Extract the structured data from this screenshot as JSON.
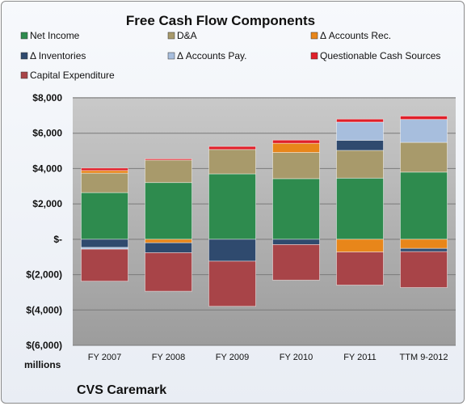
{
  "chart_data": {
    "type": "bar",
    "stacked": true,
    "title": "Free Cash Flow Components",
    "units_label": "millions",
    "footer": "CVS Caremark",
    "categories": [
      "FY 2007",
      "FY 2008",
      "FY 2009",
      "FY 2010",
      "FY 2011",
      "TTM 9-2012"
    ],
    "y_ticks": [
      "$8,000",
      "$6,000",
      "$4,000",
      "$2,000",
      "$-",
      "$(2,000)",
      "$(4,000)",
      "$(6,000)"
    ],
    "ylim": [
      -6000,
      8000
    ],
    "grid": true,
    "legend_position": "top",
    "series": [
      {
        "name": "Net Income",
        "color": "#2e8b4e",
        "values": [
          2640,
          3210,
          3700,
          3430,
          3460,
          3800
        ]
      },
      {
        "name": "D&A",
        "color": "#a89a6b",
        "values": [
          1100,
          1270,
          1380,
          1480,
          1570,
          1680
        ]
      },
      {
        "name": "Δ Accounts Rec.",
        "color": "#e8861a",
        "values": [
          150,
          -200,
          0,
          520,
          -720,
          -520
        ]
      },
      {
        "name": "Δ Inventories",
        "color": "#2f4a6e",
        "values": [
          -460,
          -560,
          -1240,
          -300,
          570,
          -180
        ]
      },
      {
        "name": "Δ Accounts Pay.",
        "color": "#a7bedd",
        "values": [
          -100,
          0,
          0,
          0,
          1030,
          1300
        ]
      },
      {
        "name": "Questionable Cash Sources",
        "color": "#e0202a",
        "values": [
          140,
          70,
          170,
          180,
          170,
          190
        ]
      },
      {
        "name": "Capital Expenditure",
        "color": "#a84448",
        "values": [
          -1810,
          -2180,
          -2550,
          -2010,
          -1870,
          -2030
        ]
      }
    ]
  }
}
